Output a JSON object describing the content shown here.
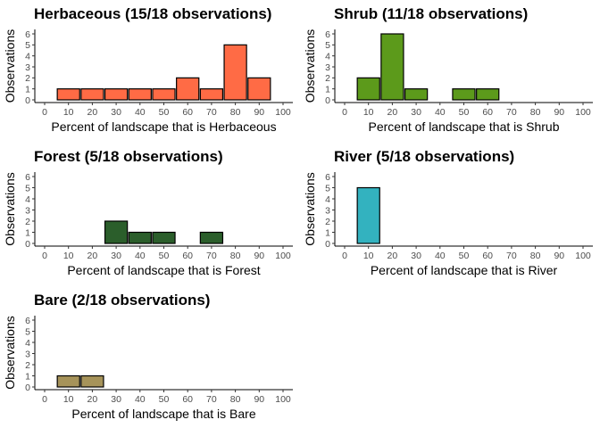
{
  "chart_data": [
    {
      "type": "bar",
      "title": "Herbaceous (15/18 observations)",
      "xlabel": "Percent of landscape that is Herbaceous",
      "ylabel": "Observations",
      "color": "#FF6B45",
      "x": [
        10,
        20,
        30,
        40,
        50,
        60,
        70,
        80,
        90
      ],
      "values": [
        1,
        1,
        1,
        1,
        1,
        2,
        1,
        5,
        2
      ],
      "xlim": [
        0,
        100
      ],
      "ylim": [
        0,
        6
      ],
      "xticks": [
        "0",
        "10",
        "20",
        "30",
        "40",
        "50",
        "60",
        "70",
        "80",
        "90",
        "100"
      ],
      "yticks": [
        "0",
        "1",
        "2",
        "3",
        "4",
        "5",
        "6"
      ],
      "grid": false
    },
    {
      "type": "bar",
      "title": "Shrub (11/18 observations)",
      "xlabel": "Percent of landscape that is Shrub",
      "ylabel": "Observations",
      "color": "#5C9A1B",
      "x": [
        10,
        20,
        30,
        50,
        60
      ],
      "values": [
        2,
        6,
        1,
        1,
        1
      ],
      "xlim": [
        0,
        100
      ],
      "ylim": [
        0,
        6
      ],
      "xticks": [
        "0",
        "10",
        "20",
        "30",
        "40",
        "50",
        "60",
        "70",
        "80",
        "90",
        "100"
      ],
      "yticks": [
        "0",
        "1",
        "2",
        "3",
        "4",
        "5",
        "6"
      ],
      "grid": false
    },
    {
      "type": "bar",
      "title": "Forest (5/18 observations)",
      "xlabel": "Percent of landscape that is Forest",
      "ylabel": "Observations",
      "color": "#2B5E2B",
      "x": [
        30,
        40,
        50,
        70
      ],
      "values": [
        2,
        1,
        1,
        1
      ],
      "xlim": [
        0,
        100
      ],
      "ylim": [
        0,
        6
      ],
      "xticks": [
        "0",
        "10",
        "20",
        "30",
        "40",
        "50",
        "60",
        "70",
        "80",
        "90",
        "100"
      ],
      "yticks": [
        "0",
        "1",
        "2",
        "3",
        "4",
        "5",
        "6"
      ],
      "grid": false
    },
    {
      "type": "bar",
      "title": "River (5/18 observations)",
      "xlabel": "Percent of landscape that is River",
      "ylabel": "Observations",
      "color": "#33B2BF",
      "x": [
        10
      ],
      "values": [
        5
      ],
      "xlim": [
        0,
        100
      ],
      "ylim": [
        0,
        6
      ],
      "xticks": [
        "0",
        "10",
        "20",
        "30",
        "40",
        "50",
        "60",
        "70",
        "80",
        "90",
        "100"
      ],
      "yticks": [
        "0",
        "1",
        "2",
        "3",
        "4",
        "5",
        "6"
      ],
      "grid": false
    },
    {
      "type": "bar",
      "title": "Bare (2/18 observations)",
      "xlabel": "Percent of landscape that is Bare",
      "ylabel": "Observations",
      "color": "#A6935A",
      "x": [
        10,
        20
      ],
      "values": [
        1,
        1
      ],
      "xlim": [
        0,
        100
      ],
      "ylim": [
        0,
        6
      ],
      "xticks": [
        "0",
        "10",
        "20",
        "30",
        "40",
        "50",
        "60",
        "70",
        "80",
        "90",
        "100"
      ],
      "yticks": [
        "0",
        "1",
        "2",
        "3",
        "4",
        "5",
        "6"
      ],
      "grid": false
    }
  ]
}
